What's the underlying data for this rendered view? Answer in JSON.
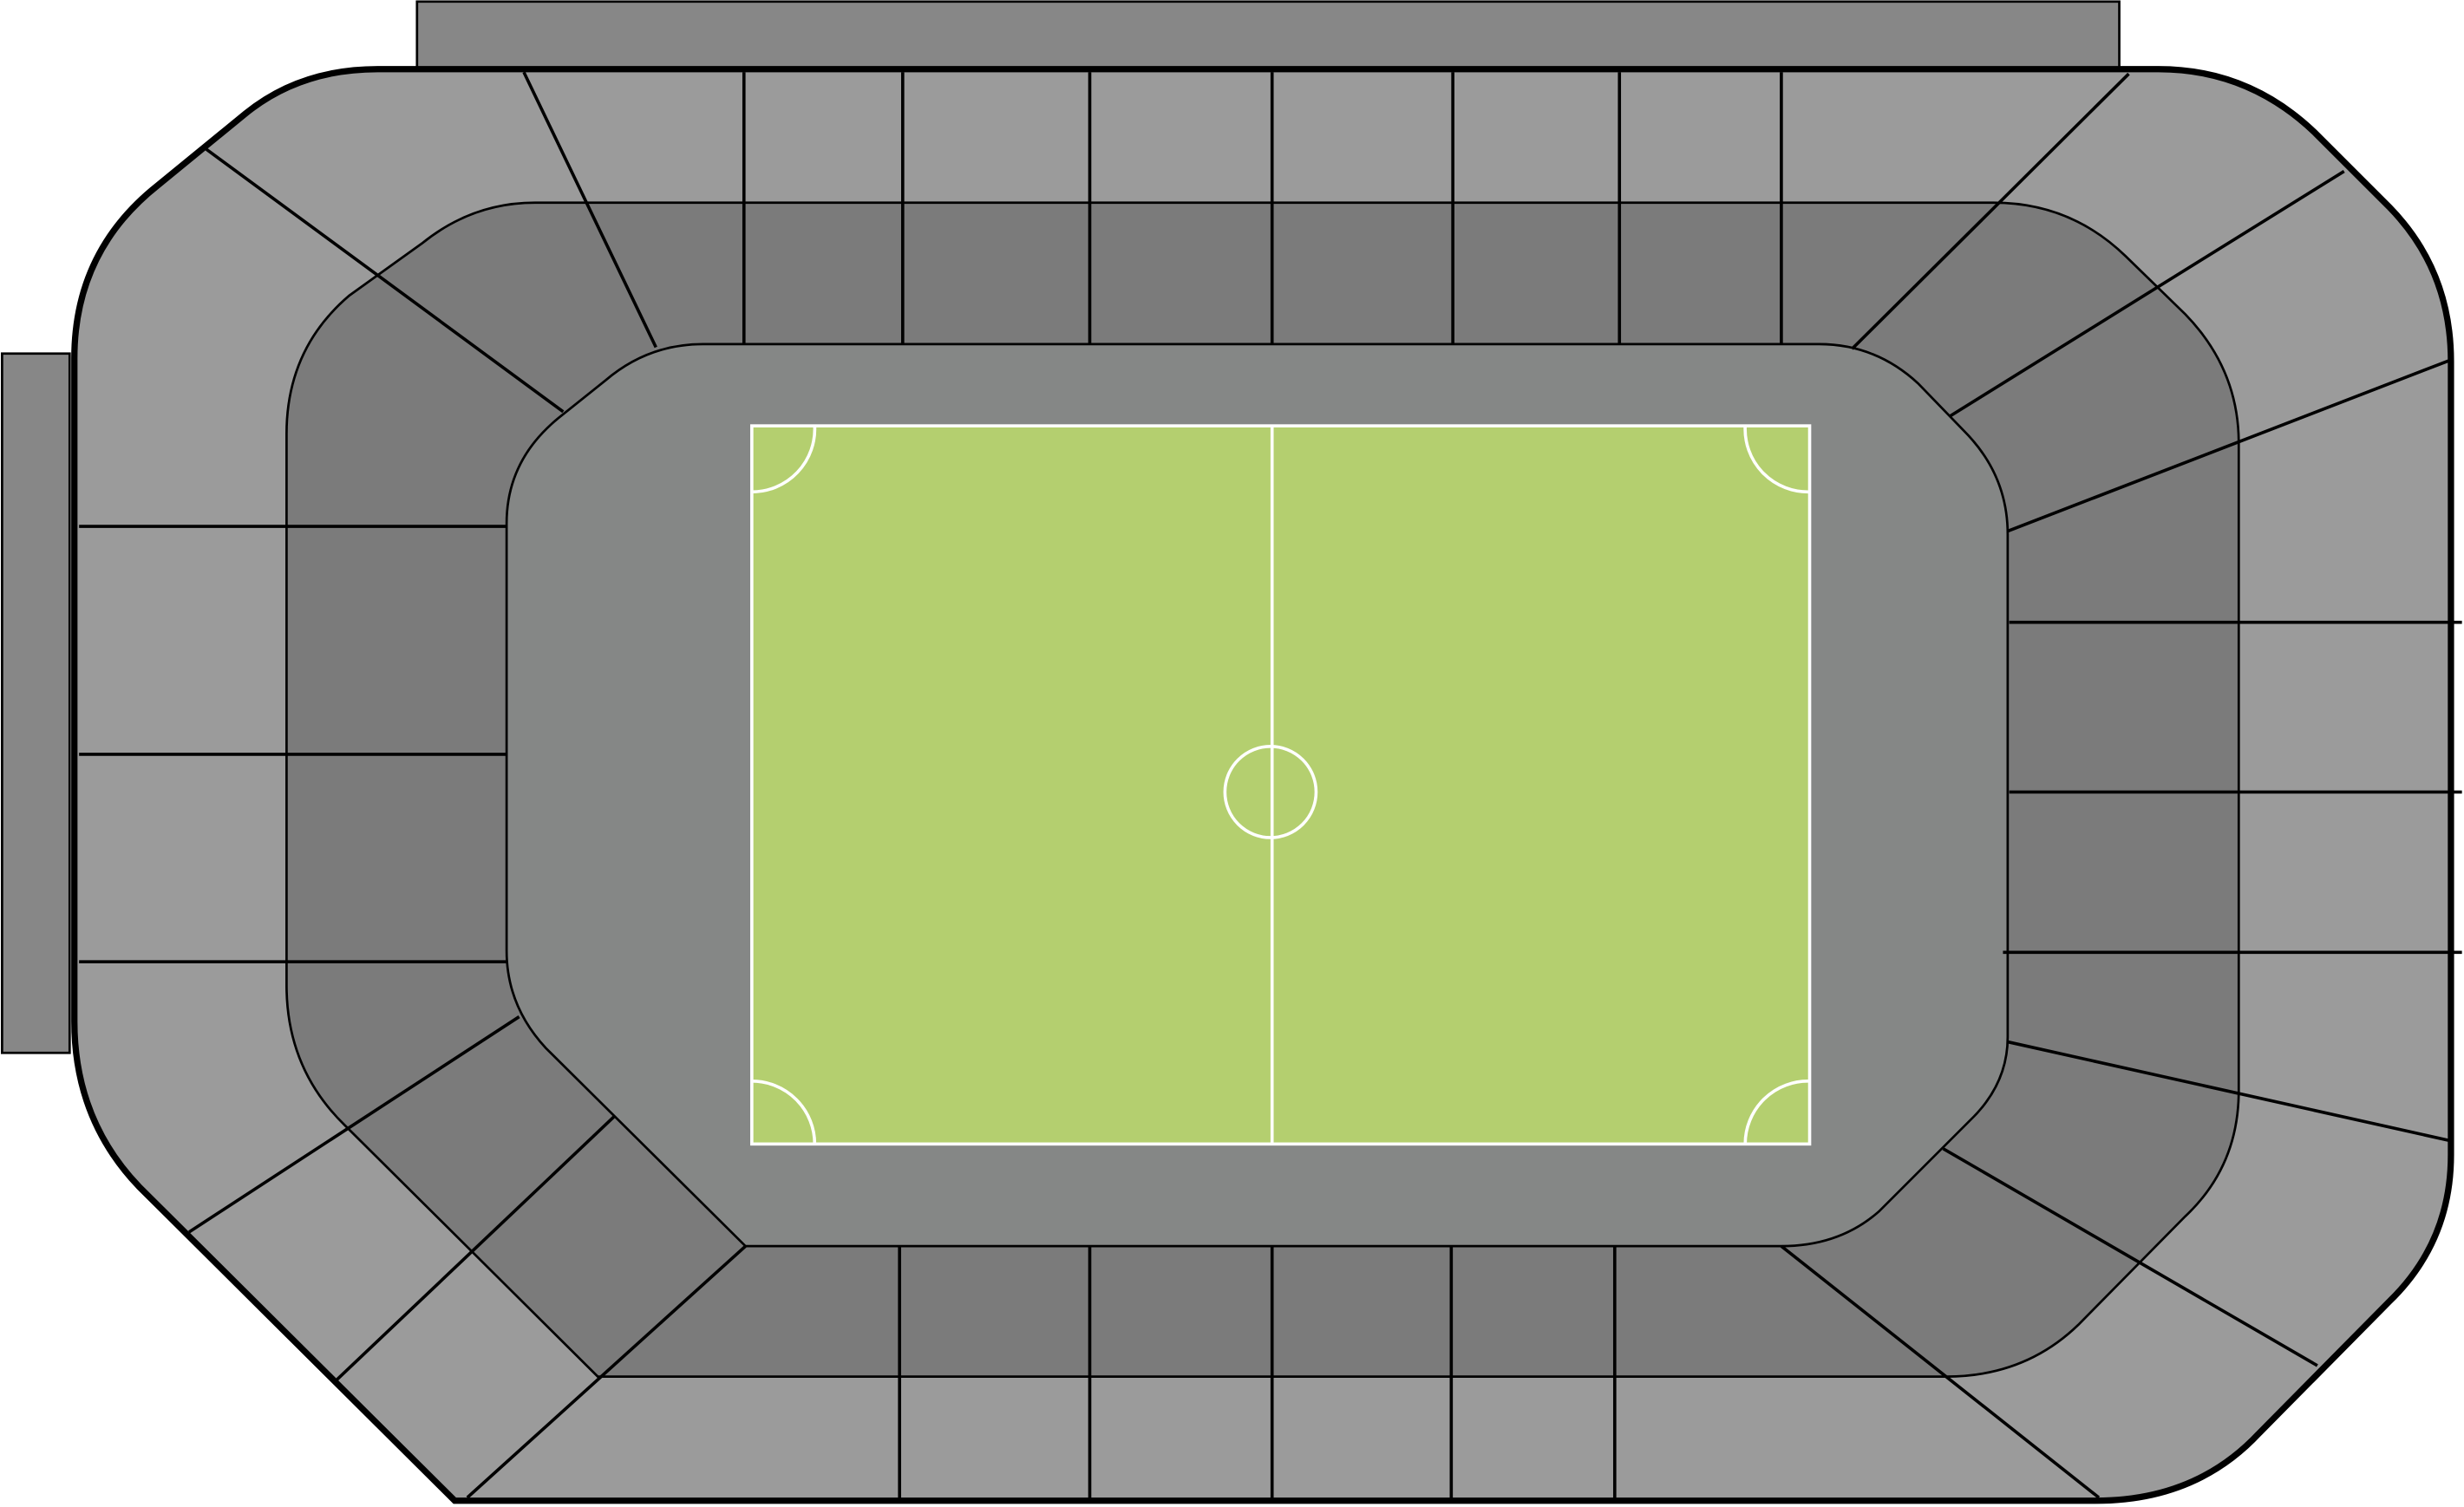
{
  "colors": {
    "background": "#ffffff",
    "outer_ring": "#9b9b9b",
    "inner_ring": "#7b7b7b",
    "apron": "#858786",
    "stand_block": "#878787",
    "pitch": "#b4cf6f",
    "outline": "#000000",
    "pitch_lines": "#ffffff"
  },
  "map": {
    "stands": [
      {
        "id": "north-stand-block"
      },
      {
        "id": "west-stand-block"
      }
    ],
    "pitch": {
      "markings": [
        "halfway-line",
        "center-circle",
        "corner-arc-nw",
        "corner-arc-ne",
        "corner-arc-sw",
        "corner-arc-se"
      ]
    }
  }
}
